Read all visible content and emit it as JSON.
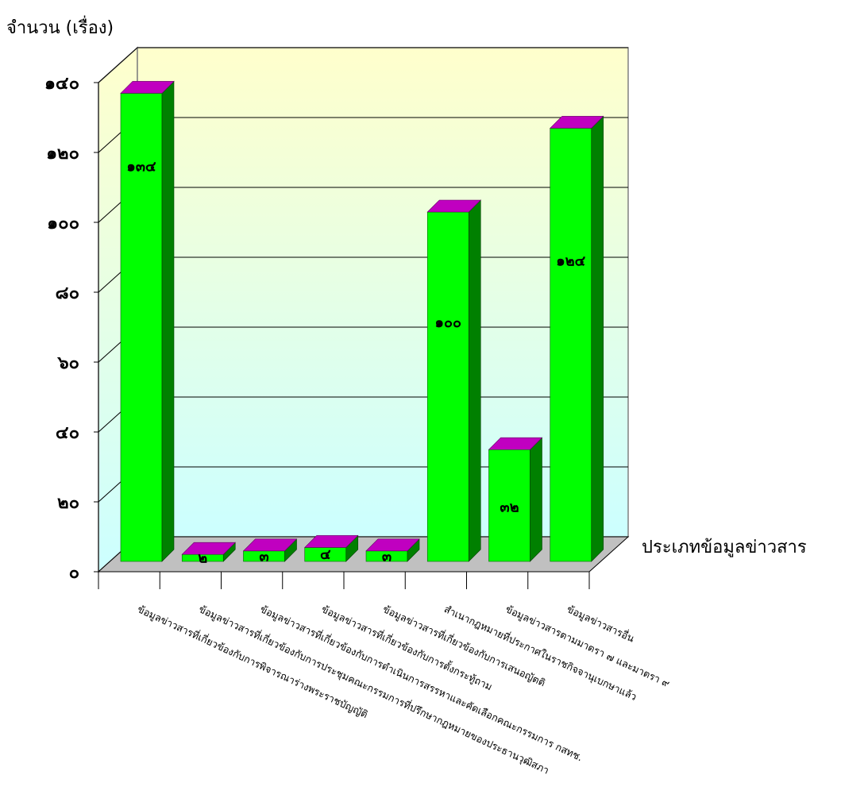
{
  "chart_data": {
    "type": "bar",
    "ylabel": "จำนวน (เรื่อง)",
    "xlabel": "ประเภทข้อมูลข่าวสาร",
    "ylim": [
      0,
      140
    ],
    "y_ticks": [
      0,
      20,
      40,
      60,
      80,
      100,
      120,
      140
    ],
    "y_tick_labels": [
      "๐",
      "๒๐",
      "๔๐",
      "๖๐",
      "๘๐",
      "๑๐๐",
      "๑๒๐",
      "๑๔๐"
    ],
    "categories": [
      "ข้อมูลข่าวสารที่เกี่ยวข้องกับการพิจารณาร่างพระราชบัญญัติ",
      "ข้อมูลข่าวสารที่เกี่ยวข้องกับการประชุมคณะกรรมการที่ปรึกษากฎหมายของประธานวุฒิสภา",
      "ข้อมูลข่าวสารที่เกี่ยวข้องกับการดำเนินการสรรหาและคัดเลือกคณะกรรมการ กสทช.",
      "ข้อมูลข่าวสารที่เกี่ยวข้องกับการตั้งกระทู้ถาม",
      "ข้อมูลข่าวสารที่เกี่ยวข้องกับการเสนอญัตติ",
      "สำเนากฎหมายที่ประกาศในราชกิจจานุเบกษาแล้ว",
      "ข้อมูลข่าวสารตามมาตรา ๗ และมาตรา ๙",
      "ข้อมูลข่าวสารอื่น"
    ],
    "values": [
      134,
      2,
      3,
      4,
      3,
      100,
      32,
      124
    ],
    "data_labels": [
      "๑๓๔",
      "๒",
      "๓",
      "๔",
      "๓",
      "๑๐๐",
      "๓๒",
      "๑๒๔"
    ],
    "grid": true,
    "legend": "none",
    "colors": {
      "bar_front": "#00ff00",
      "bar_side": "#008000",
      "bar_top": "#c000c0",
      "wall_top": "#ffffcc",
      "wall_bottom": "#ccffff",
      "floor": "#c0c0c0"
    }
  }
}
